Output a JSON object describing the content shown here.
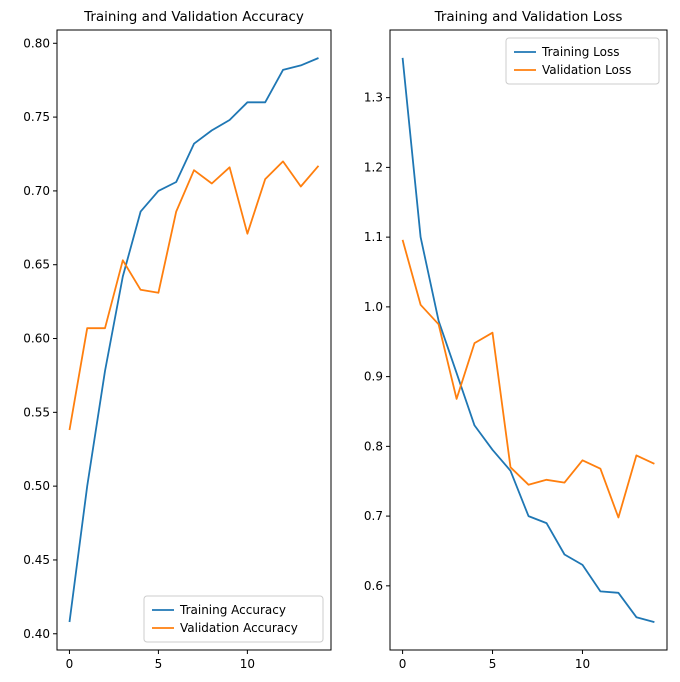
{
  "figure": {
    "background": "#ffffff"
  },
  "chart_data": [
    {
      "type": "line",
      "title": "Training and Validation Accuracy",
      "xlabel": "",
      "ylabel": "",
      "x": [
        0,
        1,
        2,
        3,
        4,
        5,
        6,
        7,
        8,
        9,
        10,
        11,
        12,
        13,
        14
      ],
      "series": [
        {
          "name": "Training Accuracy",
          "color": "#1f77b4",
          "values": [
            0.408,
            0.5,
            0.578,
            0.642,
            0.686,
            0.7,
            0.706,
            0.732,
            0.741,
            0.748,
            0.76,
            0.76,
            0.782,
            0.785,
            0.79
          ]
        },
        {
          "name": "Validation Accuracy",
          "color": "#ff7f0e",
          "values": [
            0.538,
            0.607,
            0.607,
            0.653,
            0.633,
            0.631,
            0.686,
            0.714,
            0.705,
            0.716,
            0.671,
            0.708,
            0.72,
            0.703,
            0.717
          ]
        }
      ],
      "xlim": [
        -0.7,
        14.7
      ],
      "ylim": [
        0.389,
        0.809
      ],
      "xticks": [
        0,
        5,
        10
      ],
      "xtick_labels": [
        "0",
        "5",
        "10"
      ],
      "yticks": [
        0.4,
        0.45,
        0.5,
        0.55,
        0.6,
        0.65,
        0.7,
        0.75,
        0.8
      ],
      "ytick_labels": [
        "0.40",
        "0.45",
        "0.50",
        "0.55",
        "0.60",
        "0.65",
        "0.70",
        "0.75",
        "0.80"
      ],
      "grid": false,
      "legend_pos": "lower right"
    },
    {
      "type": "line",
      "title": "Training and Validation Loss",
      "xlabel": "",
      "ylabel": "",
      "x": [
        0,
        1,
        2,
        3,
        4,
        5,
        6,
        7,
        8,
        9,
        10,
        11,
        12,
        13,
        14
      ],
      "series": [
        {
          "name": "Training Loss",
          "color": "#1f77b4",
          "values": [
            1.357,
            1.1,
            0.98,
            0.905,
            0.83,
            0.795,
            0.765,
            0.7,
            0.69,
            0.645,
            0.63,
            0.592,
            0.59,
            0.555,
            0.548
          ]
        },
        {
          "name": "Validation Loss",
          "color": "#ff7f0e",
          "values": [
            1.096,
            1.003,
            0.975,
            0.868,
            0.948,
            0.963,
            0.77,
            0.745,
            0.752,
            0.748,
            0.78,
            0.768,
            0.698,
            0.787,
            0.775
          ]
        }
      ],
      "xlim": [
        -0.7,
        14.7
      ],
      "ylim": [
        0.508,
        1.397
      ],
      "xticks": [
        0,
        5,
        10
      ],
      "xtick_labels": [
        "0",
        "5",
        "10"
      ],
      "yticks": [
        0.6,
        0.7,
        0.8,
        0.9,
        1.0,
        1.1,
        1.2,
        1.3
      ],
      "ytick_labels": [
        "0.6",
        "0.7",
        "0.8",
        "0.9",
        "1.0",
        "1.1",
        "1.2",
        "1.3"
      ],
      "grid": false,
      "legend_pos": "upper right"
    }
  ]
}
